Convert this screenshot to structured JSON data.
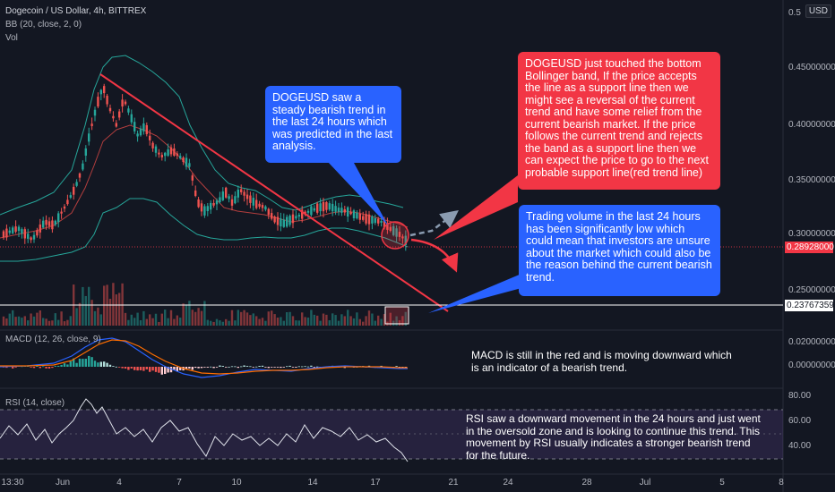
{
  "header": {
    "symbol": "Dogecoin / US Dollar, 4h, BITTREX",
    "bb": "BB (20, close, 2, 0)",
    "vol": "Vol",
    "macd": "MACD (12, 26, close, 9)",
    "rsi": "RSI (14, close)",
    "currency_button": "USD"
  },
  "price_axis": {
    "ticks": [
      "0.5",
      "0.45000000",
      "0.40000000",
      "0.35000000",
      "0.30000000",
      "0.25000000"
    ],
    "current_price": "0.28928000",
    "crosshair_price": "0.23767359",
    "current_color": "#f23645"
  },
  "macd_axis": {
    "ticks": [
      "0.02000000",
      "0.00000000"
    ]
  },
  "rsi_axis": {
    "ticks": [
      "80.00",
      "60.00",
      "40.00"
    ]
  },
  "time_axis": {
    "ticks": [
      "13:30",
      "Jun",
      "4",
      "7",
      "10",
      "14",
      "17",
      "21",
      "24",
      "28",
      "Jul",
      "5",
      "8"
    ]
  },
  "annotations": {
    "blue_top": "DOGEUSD saw a steady bearish trend in the last 24 hours which was predicted in the last analysis.",
    "red": "DOGEUSD just touched the bottom Bollinger band, If the price accepts the line as a support line then we might see a reversal of the current trend and have some relief from the current bearish market. If the price follows the current trend and rejects the band as a support line then we can expect the price to go to the next probable support line(red trend line)",
    "blue_volume": "Trading volume in the last 24 hours has been significantly low which could mean that investors are unsure about the market which could also be the reason behind the current bearish trend.",
    "macd_note": "MACD is still in the red and is moving downward which is an indicator of a bearish trend.",
    "rsi_note": "RSI saw a downward movement in the 24 hours and just went in the oversold zone and is looking to continue this trend. This movement by RSI usually indicates a stronger bearish trend for the future."
  },
  "colors": {
    "background": "#131722",
    "up": "#26a69a",
    "down": "#ef5350",
    "bb_band": "#26a69a",
    "bb_basis": "#b33e3e",
    "trend_line": "#f23645",
    "callout_blue": "#2962ff",
    "callout_red": "#f23645",
    "macd_line": "#2962ff",
    "signal_line": "#ff6d00",
    "rsi_line": "#e0e3eb",
    "rsi_band": "#7e57c2"
  },
  "chart_data": {
    "type": "candlestick",
    "price_levels": [
      0.45,
      0.4,
      0.35,
      0.3,
      0.25
    ],
    "current_price": 0.28928,
    "crosshair_price": 0.23767359,
    "rsi_levels": [
      80,
      60,
      40
    ],
    "macd_levels": [
      0.02,
      0.0
    ],
    "x_labels": [
      "13:30",
      "Jun",
      "4",
      "7",
      "10",
      "14",
      "17",
      "21",
      "24",
      "28",
      "Jul",
      "5",
      "8"
    ]
  }
}
